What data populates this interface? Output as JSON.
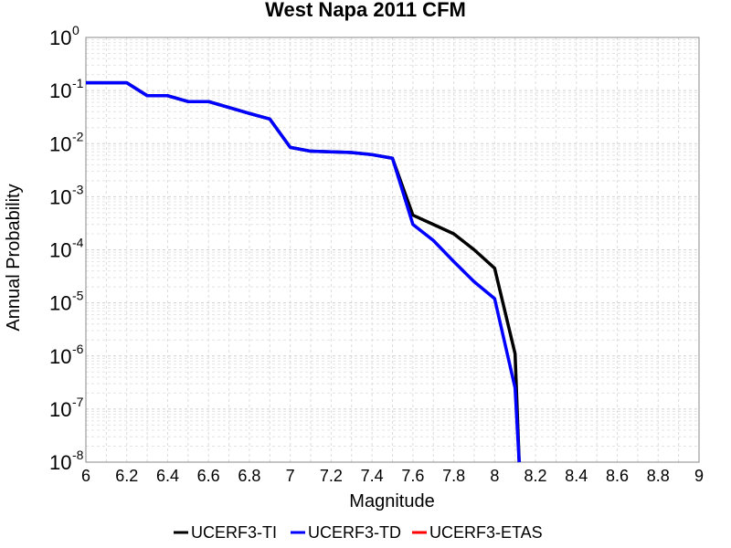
{
  "chart_data": {
    "type": "line",
    "title": "West Napa 2011 CFM",
    "xlabel": "Magnitude",
    "ylabel": "Annual Probability",
    "xlim": [
      6,
      9
    ],
    "ylim": [
      1e-08,
      1
    ],
    "y_scale": "log",
    "grid": true,
    "legend_position": "bottom",
    "x_ticks": [
      "6",
      "6.2",
      "6.4",
      "6.6",
      "6.8",
      "7",
      "7.2",
      "7.4",
      "7.6",
      "7.8",
      "8",
      "8.2",
      "8.4",
      "8.6",
      "8.8",
      "9"
    ],
    "y_ticks": [
      {
        "base": "10",
        "exp": "0"
      },
      {
        "base": "10",
        "exp": "-1"
      },
      {
        "base": "10",
        "exp": "-2"
      },
      {
        "base": "10",
        "exp": "-3"
      },
      {
        "base": "10",
        "exp": "-4"
      },
      {
        "base": "10",
        "exp": "-5"
      },
      {
        "base": "10",
        "exp": "-6"
      },
      {
        "base": "10",
        "exp": "-7"
      },
      {
        "base": "10",
        "exp": "-8"
      }
    ],
    "series": [
      {
        "name": "UCERF3-TI",
        "color": "#000000",
        "x": [
          6.0,
          6.1,
          6.2,
          6.3,
          6.4,
          6.5,
          6.6,
          6.7,
          6.8,
          6.9,
          7.0,
          7.1,
          7.2,
          7.3,
          7.4,
          7.5,
          7.6,
          7.7,
          7.8,
          7.9,
          8.0,
          8.1,
          8.12
        ],
        "y": [
          0.14,
          0.14,
          0.14,
          0.08,
          0.08,
          0.062,
          0.062,
          0.048,
          0.037,
          0.029,
          0.0085,
          0.0072,
          0.007,
          0.0068,
          0.0062,
          0.0053,
          0.00045,
          0.0003,
          0.0002,
          0.0001,
          4.5e-05,
          1.1e-06,
          1e-08
        ]
      },
      {
        "name": "UCERF3-TD",
        "color": "#0000ff",
        "x": [
          6.0,
          6.1,
          6.2,
          6.3,
          6.4,
          6.5,
          6.6,
          6.7,
          6.8,
          6.9,
          7.0,
          7.1,
          7.2,
          7.3,
          7.4,
          7.5,
          7.6,
          7.7,
          7.8,
          7.9,
          8.0,
          8.1,
          8.12
        ],
        "y": [
          0.14,
          0.14,
          0.14,
          0.08,
          0.08,
          0.062,
          0.062,
          0.048,
          0.037,
          0.029,
          0.0085,
          0.0072,
          0.007,
          0.0068,
          0.0062,
          0.0053,
          0.0003,
          0.00015,
          6e-05,
          2.5e-05,
          1.2e-05,
          2.5e-07,
          1e-08
        ]
      },
      {
        "name": "UCERF3-ETAS",
        "color": "#ff0000",
        "x": [],
        "y": []
      }
    ]
  }
}
